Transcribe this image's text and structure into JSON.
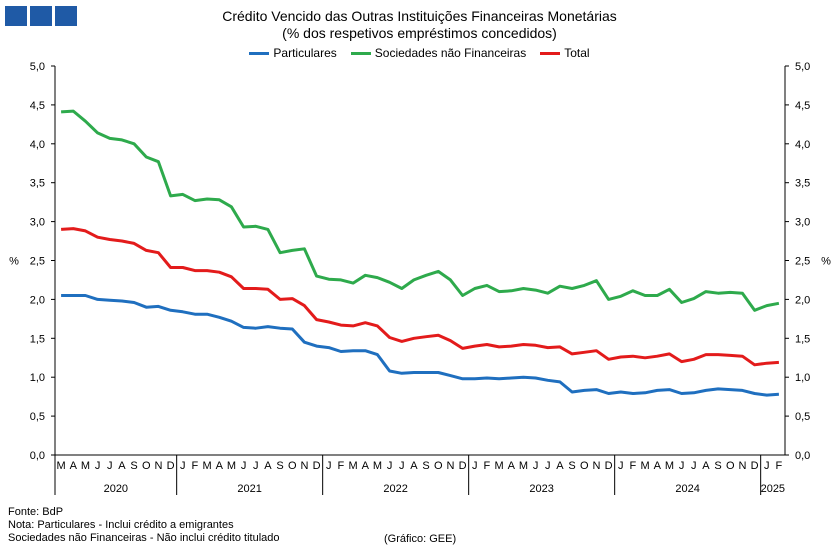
{
  "header": {
    "title_line1": "Crédito Vencido das Outras Instituições Financeiras Monetárias",
    "title_line2": "(% dos respetivos empréstimos concedidos)"
  },
  "footer": {
    "source": "Fonte: BdP",
    "note1": "Nota: Particulares - Inclui crédito a emigrantes",
    "note2": "Sociedades não Financeiras - Não inclui crédito titulado",
    "credit": "(Gráfico: GEE)"
  },
  "chart_data": {
    "type": "line",
    "title": "Crédito Vencido das Outras Instituições Financeiras Monetárias (% dos respetivos empréstimos concedidos)",
    "ylabel": "%",
    "ylim": [
      0,
      5
    ],
    "yticks": [
      "0,0",
      "0,5",
      "1,0",
      "1,5",
      "2,0",
      "2,5",
      "3,0",
      "3,5",
      "4,0",
      "4,5",
      "5,0"
    ],
    "legend_position": "top-center",
    "grid": false,
    "x": [
      "M",
      "A",
      "M",
      "J",
      "J",
      "A",
      "S",
      "O",
      "N",
      "D",
      "J",
      "F",
      "M",
      "A",
      "M",
      "J",
      "J",
      "A",
      "S",
      "O",
      "N",
      "D",
      "J",
      "F",
      "M",
      "A",
      "M",
      "J",
      "J",
      "A",
      "S",
      "O",
      "N",
      "D",
      "J",
      "F",
      "M",
      "A",
      "M",
      "J",
      "J",
      "A",
      "S",
      "O",
      "N",
      "D",
      "J",
      "F",
      "M",
      "A",
      "M",
      "J",
      "J",
      "A",
      "S",
      "O",
      "N",
      "D",
      "J",
      "F"
    ],
    "years": [
      {
        "label": "2020",
        "start": 0,
        "end": 9
      },
      {
        "label": "2021",
        "start": 10,
        "end": 21
      },
      {
        "label": "2022",
        "start": 22,
        "end": 33
      },
      {
        "label": "2023",
        "start": 34,
        "end": 45
      },
      {
        "label": "2024",
        "start": 46,
        "end": 57
      },
      {
        "label": "2025",
        "start": 58,
        "end": 59
      }
    ],
    "series": [
      {
        "name": "Particulares",
        "color": "#1f6fbf",
        "values": [
          2.05,
          2.05,
          2.05,
          2.0,
          1.99,
          1.98,
          1.96,
          1.9,
          1.91,
          1.86,
          1.84,
          1.81,
          1.81,
          1.77,
          1.72,
          1.64,
          1.63,
          1.65,
          1.63,
          1.62,
          1.45,
          1.4,
          1.38,
          1.33,
          1.34,
          1.34,
          1.29,
          1.08,
          1.05,
          1.06,
          1.06,
          1.06,
          1.02,
          0.98,
          0.98,
          0.99,
          0.98,
          0.99,
          1.0,
          0.99,
          0.96,
          0.94,
          0.81,
          0.83,
          0.84,
          0.79,
          0.81,
          0.79,
          0.8,
          0.83,
          0.84,
          0.79,
          0.8,
          0.83,
          0.85,
          0.84,
          0.83,
          0.79,
          0.77,
          0.78
        ]
      },
      {
        "name": "Sociedades não Financeiras",
        "color": "#2eaa4c",
        "values": [
          4.41,
          4.42,
          4.29,
          4.14,
          4.07,
          4.05,
          4.0,
          3.83,
          3.77,
          3.33,
          3.35,
          3.27,
          3.29,
          3.28,
          3.19,
          2.93,
          2.94,
          2.9,
          2.6,
          2.63,
          2.65,
          2.3,
          2.26,
          2.25,
          2.21,
          2.31,
          2.28,
          2.22,
          2.14,
          2.25,
          2.31,
          2.36,
          2.25,
          2.05,
          2.14,
          2.18,
          2.1,
          2.11,
          2.14,
          2.12,
          2.08,
          2.17,
          2.14,
          2.18,
          2.24,
          2.0,
          2.04,
          2.11,
          2.05,
          2.05,
          2.13,
          1.96,
          2.01,
          2.1,
          2.08,
          2.09,
          2.08,
          1.86,
          1.92,
          1.95
        ]
      },
      {
        "name": "Total",
        "color": "#e31b1b",
        "values": [
          2.9,
          2.91,
          2.88,
          2.8,
          2.77,
          2.75,
          2.72,
          2.63,
          2.6,
          2.41,
          2.41,
          2.37,
          2.37,
          2.35,
          2.29,
          2.14,
          2.14,
          2.13,
          2.0,
          2.01,
          1.92,
          1.74,
          1.71,
          1.67,
          1.66,
          1.7,
          1.66,
          1.51,
          1.46,
          1.5,
          1.52,
          1.54,
          1.47,
          1.37,
          1.4,
          1.42,
          1.39,
          1.4,
          1.42,
          1.41,
          1.38,
          1.39,
          1.3,
          1.32,
          1.34,
          1.23,
          1.26,
          1.27,
          1.25,
          1.27,
          1.3,
          1.2,
          1.23,
          1.29,
          1.29,
          1.28,
          1.27,
          1.16,
          1.18,
          1.19
        ]
      }
    ]
  }
}
